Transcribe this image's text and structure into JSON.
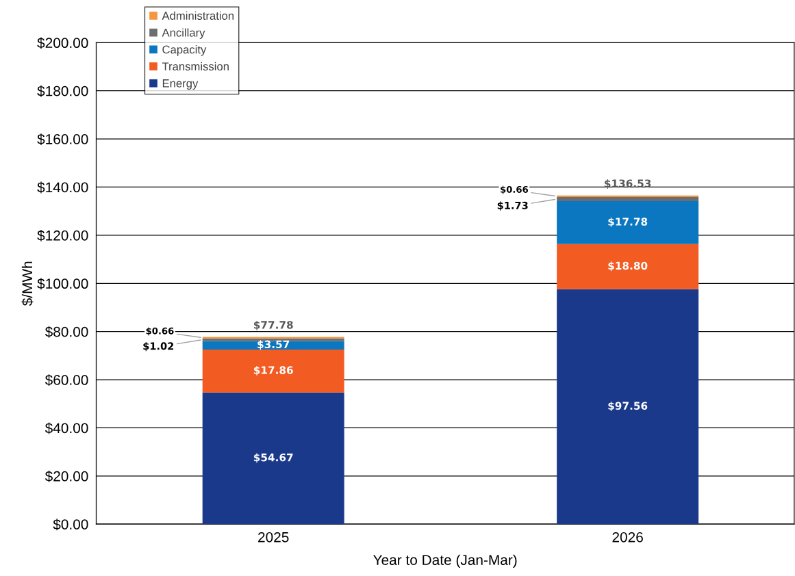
{
  "chart_data": {
    "type": "bar",
    "stacked": true,
    "xlabel": "Year to Date (Jan-Mar)",
    "ylabel": "$/MWh",
    "categories": [
      "2025",
      "2026"
    ],
    "series": [
      {
        "name": "Energy",
        "color": "#1b398b",
        "values": [
          54.67,
          97.56
        ],
        "value_labels": [
          "$54.67",
          "$97.56"
        ]
      },
      {
        "name": "Transmission",
        "color": "#f25c23",
        "values": [
          17.86,
          18.8
        ],
        "value_labels": [
          "$17.86",
          "$18.80"
        ]
      },
      {
        "name": "Capacity",
        "color": "#0b77c1",
        "values": [
          3.57,
          17.78
        ],
        "value_labels": [
          "$3.57",
          "$17.78"
        ]
      },
      {
        "name": "Ancillary",
        "color": "#6d6e71",
        "values": [
          1.02,
          1.73
        ],
        "value_labels": [
          "$1.02",
          "$1.73"
        ]
      },
      {
        "name": "Administration",
        "color": "#f6963f",
        "values": [
          0.66,
          0.66
        ],
        "value_labels": [
          "$0.66",
          "$0.66"
        ]
      }
    ],
    "totals": [
      "$77.78",
      "$136.53"
    ],
    "ylim": [
      0,
      200
    ],
    "yticks": [
      {
        "value": 0,
        "label": "$0.00"
      },
      {
        "value": 20,
        "label": "$20.00"
      },
      {
        "value": 40,
        "label": "$40.00"
      },
      {
        "value": 60,
        "label": "$60.00"
      },
      {
        "value": 80,
        "label": "$80.00"
      },
      {
        "value": 100,
        "label": "$100.00"
      },
      {
        "value": 120,
        "label": "$120.00"
      },
      {
        "value": 140,
        "label": "$140.00"
      },
      {
        "value": 160,
        "label": "$160.00"
      },
      {
        "value": 180,
        "label": "$180.00"
      },
      {
        "value": 200,
        "label": "$200.00"
      }
    ],
    "grid": "y",
    "legend": "top left"
  }
}
